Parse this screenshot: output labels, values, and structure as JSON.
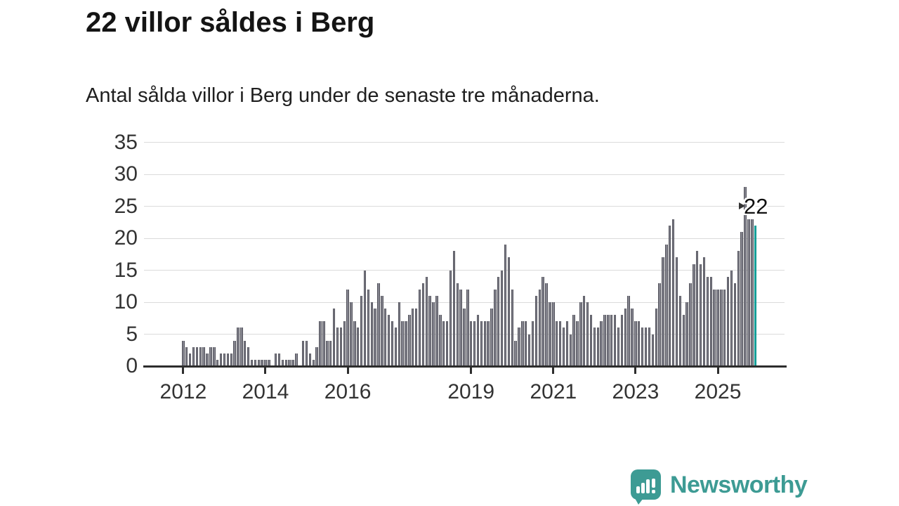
{
  "header": {
    "title": "22 villor såldes i Berg",
    "subtitle": "Antal sålda villor i Berg under de senaste tre månaderna."
  },
  "annotation": {
    "label": "22"
  },
  "logo": {
    "text": "Newsworthy",
    "icon": "bar-chart-exclamation-badge"
  },
  "colors": {
    "bar": "#84848e",
    "bar_edge": "#53535c",
    "highlight": "#12a7a1",
    "axis": "#2d2d2d",
    "grid": "#dbdbdb",
    "title_text": "#141414",
    "logo": "#3d9b94"
  },
  "chart_data": {
    "type": "bar",
    "title": "22 villor såldes i Berg",
    "subtitle": "Antal sålda villor i Berg under de senaste tre månaderna.",
    "x_start_year": 2012,
    "x_tick_labels": [
      "2012",
      "2014",
      "2016",
      "2019",
      "2021",
      "2023",
      "2025"
    ],
    "y_ticks": [
      0,
      5,
      10,
      15,
      20,
      25,
      30,
      35
    ],
    "ylim": [
      0,
      35
    ],
    "grid": true,
    "highlight_last": true,
    "annotated_value": 22,
    "values": [
      4,
      3,
      2,
      3,
      3,
      3,
      3,
      2,
      3,
      3,
      1,
      2,
      2,
      2,
      2,
      4,
      6,
      6,
      4,
      3,
      1,
      1,
      1,
      1,
      1,
      1,
      0,
      2,
      2,
      1,
      1,
      1,
      1,
      2,
      0,
      4,
      4,
      2,
      1,
      3,
      7,
      7,
      4,
      4,
      9,
      6,
      6,
      7,
      12,
      10,
      7,
      6,
      11,
      15,
      12,
      10,
      9,
      13,
      11,
      9,
      8,
      7,
      6,
      10,
      7,
      7,
      8,
      9,
      9,
      12,
      13,
      14,
      11,
      10,
      11,
      8,
      7,
      7,
      15,
      18,
      13,
      12,
      9,
      12,
      7,
      7,
      8,
      7,
      7,
      7,
      9,
      12,
      14,
      15,
      19,
      17,
      12,
      4,
      6,
      7,
      7,
      5,
      7,
      11,
      12,
      14,
      13,
      10,
      10,
      7,
      7,
      6,
      7,
      5,
      8,
      7,
      10,
      11,
      10,
      8,
      6,
      6,
      7,
      8,
      8,
      8,
      8,
      6,
      8,
      9,
      11,
      9,
      7,
      7,
      6,
      6,
      6,
      5,
      9,
      13,
      17,
      19,
      22,
      23,
      17,
      11,
      8,
      10,
      13,
      16,
      18,
      16,
      17,
      14,
      14,
      12,
      12,
      12,
      12,
      14,
      15,
      13,
      18,
      21,
      28,
      23,
      23,
      22
    ]
  }
}
